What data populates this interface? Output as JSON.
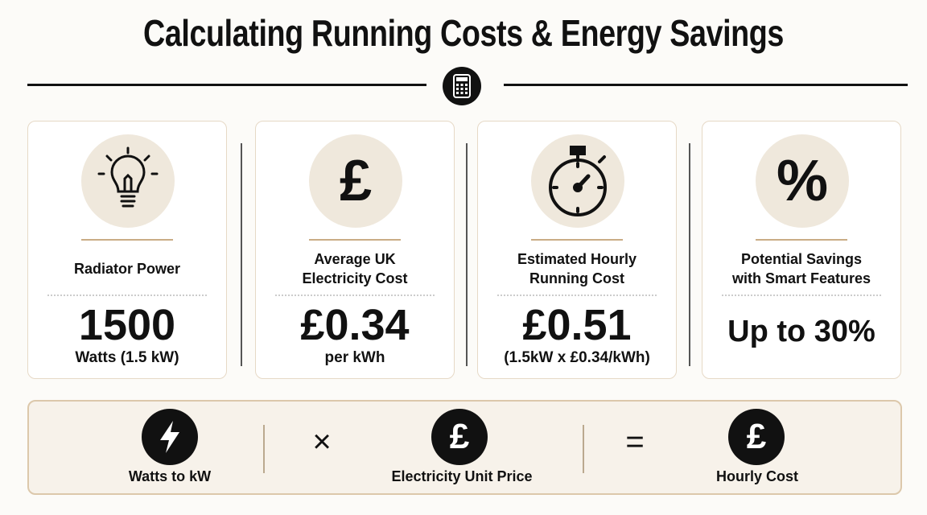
{
  "header": {
    "title": "Calculating Running Costs & Energy Savings"
  },
  "cards": [
    {
      "label": "Radiator Power",
      "value": "1500",
      "sub": "Watts (1.5 kW)"
    },
    {
      "icon": "£",
      "label": "Average UK Electricity Cost",
      "value": "£0.34",
      "sub": "per kWh"
    },
    {
      "label": "Estimated Hourly Running Cost",
      "value": "£0.51",
      "sub": "(1.5kW x £0.34/kWh)"
    },
    {
      "icon": "%",
      "label": "Potential Savings with Smart Features",
      "value": "Up to 30%"
    }
  ],
  "formula": {
    "items": [
      {
        "label": "Watts to kW"
      },
      {
        "icon": "£",
        "label": "Electricity Unit Price"
      },
      {
        "icon": "£",
        "label": "Hourly Cost"
      }
    ],
    "operators": [
      "×",
      "="
    ]
  }
}
